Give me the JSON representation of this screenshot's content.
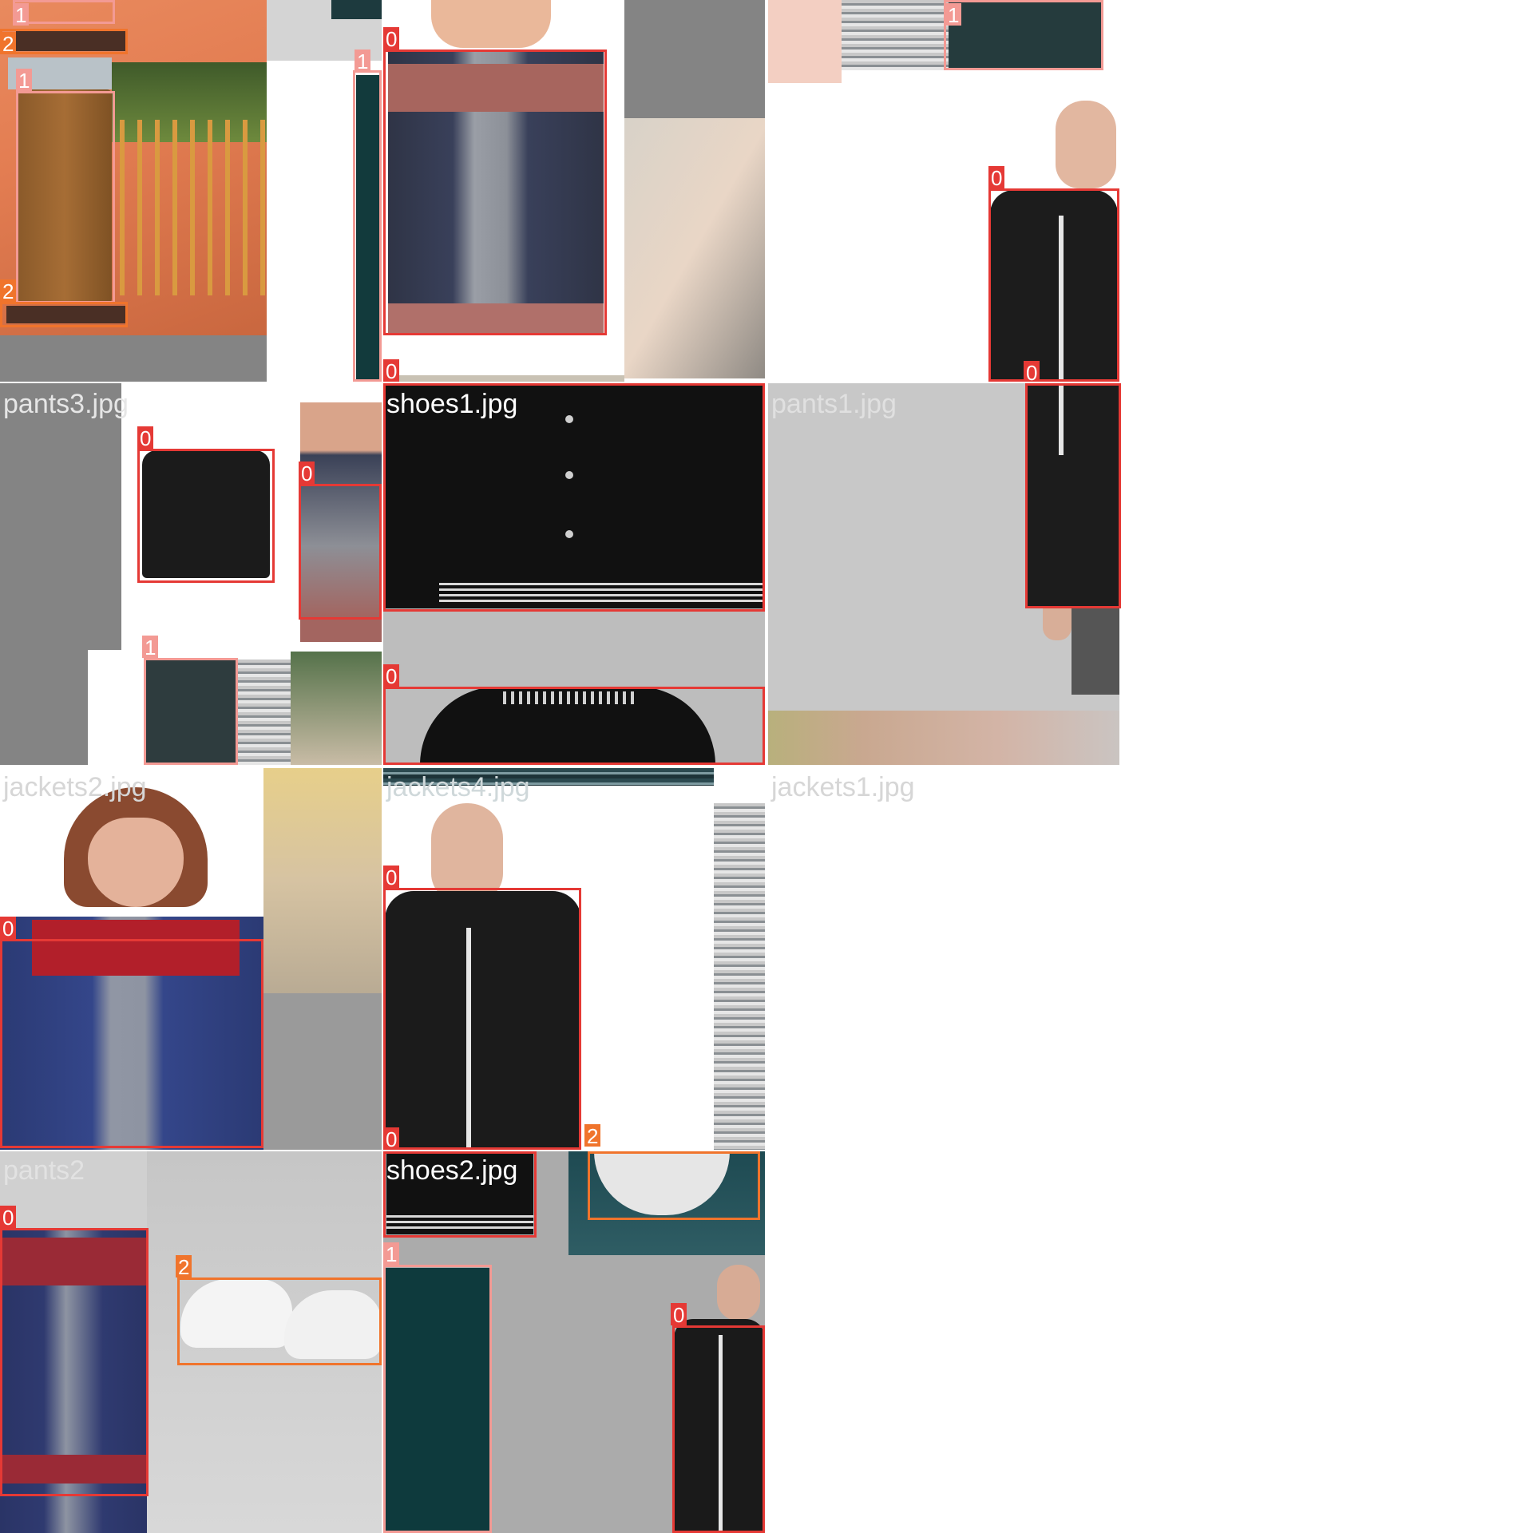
{
  "mosaic": {
    "filename_labels": [
      "pants3.jpg",
      "shoes1.jpg",
      "pants1.jpg",
      "jackets2.jpg",
      "jackets4.jpg",
      "jackets1.jpg",
      "pants2",
      "shoes2.jpg"
    ],
    "class_ids": [
      "0",
      "1",
      "2"
    ],
    "class_colors": {
      "0": "#e53935",
      "1": "#f39a94",
      "2": "#f0742c"
    },
    "detections": [
      {
        "tile": 1,
        "cls": "1"
      },
      {
        "tile": 1,
        "cls": "2"
      },
      {
        "tile": 1,
        "cls": "1"
      },
      {
        "tile": 1,
        "cls": "2"
      },
      {
        "tile": 1,
        "cls": "1"
      },
      {
        "tile": 2,
        "cls": "0"
      },
      {
        "tile": 2,
        "cls": "0"
      },
      {
        "tile": 3,
        "cls": "1"
      },
      {
        "tile": 3,
        "cls": "0"
      },
      {
        "tile": 3,
        "cls": "0"
      },
      {
        "tile": 4,
        "cls": "0"
      },
      {
        "tile": 4,
        "cls": "0"
      },
      {
        "tile": 4,
        "cls": "1"
      },
      {
        "tile": 5,
        "cls": "0"
      },
      {
        "tile": 5,
        "cls": "0"
      },
      {
        "tile": 7,
        "cls": "0"
      },
      {
        "tile": 8,
        "cls": "0"
      },
      {
        "tile": 8,
        "cls": "0"
      },
      {
        "tile": 8,
        "cls": "2"
      },
      {
        "tile": 10,
        "cls": "0"
      },
      {
        "tile": 10,
        "cls": "2"
      },
      {
        "tile": 11,
        "cls": "1"
      },
      {
        "tile": 11,
        "cls": "0"
      }
    ]
  }
}
